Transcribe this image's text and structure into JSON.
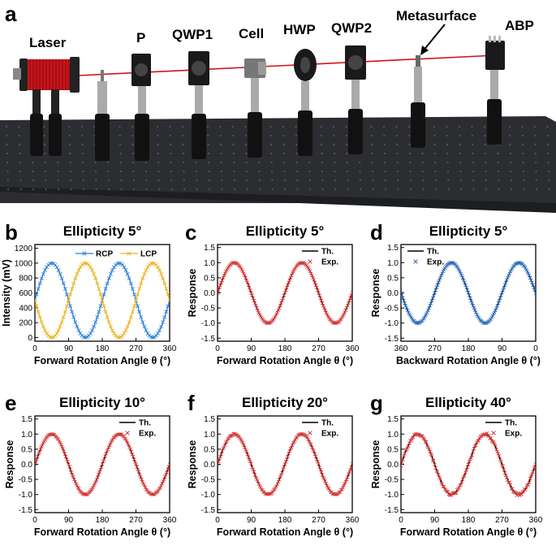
{
  "panel_letters": [
    "a",
    "b",
    "c",
    "d",
    "e",
    "f",
    "g"
  ],
  "setup": {
    "labels": [
      "Laser",
      "P",
      "QWP1",
      "Cell",
      "HWP",
      "QWP2",
      "Metasurface",
      "ABP"
    ],
    "colors": {
      "table": "#2b2d31",
      "table_edge": "#55585e",
      "laser": "#c8141a",
      "beam": "#d0141a",
      "post": "#222222",
      "mount": "#1a1a1a"
    }
  },
  "chart_data": [
    {
      "panel": "b",
      "type": "line",
      "title": "Ellipticity 5°",
      "xlabel": "Forward Rotation Angle θ (°)",
      "ylabel": "Intensity (mV)",
      "xlim": [
        0,
        360
      ],
      "ylim": [
        -50,
        1250
      ],
      "xticks": [
        0,
        90,
        180,
        270,
        360
      ],
      "xtick_labels": [
        "0",
        "90",
        "180",
        "270",
        "360"
      ],
      "yticks": [
        0,
        200,
        400,
        600,
        800,
        1000,
        1200
      ],
      "ytick_labels": [
        "0",
        "200",
        "400",
        "600",
        "800",
        "1000",
        "1200"
      ],
      "legend": "top-right, horizontal",
      "series": [
        {
          "name": "RCP",
          "color": "#2f7fd9",
          "marker": "x",
          "model": "500+500*sin(2θ)"
        },
        {
          "name": "LCP",
          "color": "#e8b420",
          "marker": "x",
          "model": "500-500*sin(2θ)"
        }
      ]
    },
    {
      "panel": "c",
      "type": "line",
      "title": "Ellipticity 5°",
      "xlabel": "Forward Rotation Angle θ (°)",
      "ylabel": "Response",
      "xlim": [
        0,
        360
      ],
      "ylim": [
        -1.6,
        1.6
      ],
      "reversed": false,
      "xticks": [
        0,
        90,
        180,
        270,
        360
      ],
      "xtick_labels": [
        "0",
        "90",
        "180",
        "270",
        "360"
      ],
      "yticks": [
        -1.5,
        -1.0,
        -0.5,
        0.0,
        0.5,
        1.0,
        1.5
      ],
      "ytick_labels": [
        "-1.5",
        "-1.0",
        "-0.5",
        "0.0",
        "0.5",
        "1.0",
        "1.5"
      ],
      "legend": "top-right",
      "series": [
        {
          "name": "Th.",
          "color": "#000000",
          "kind": "line",
          "model": "sin(2θ)"
        },
        {
          "name": "Exp.",
          "color": "#d83a3a",
          "kind": "scatter",
          "marker": "x",
          "noise": 0.01
        }
      ]
    },
    {
      "panel": "d",
      "type": "line",
      "title": "Ellipticity 5°",
      "xlabel": "Backward Rotation Angle θ (°)",
      "ylabel": "Response",
      "xlim": [
        360,
        0
      ],
      "ylim": [
        -1.6,
        1.6
      ],
      "reversed": true,
      "xticks": [
        360,
        270,
        180,
        90,
        0
      ],
      "xtick_labels": [
        "360",
        "270",
        "180",
        "90",
        "0"
      ],
      "yticks": [
        -1.5,
        -1.0,
        -0.5,
        0.0,
        0.5,
        1.0,
        1.5
      ],
      "ytick_labels": [
        "-1.5",
        "-1.0",
        "-0.5",
        "0.0",
        "0.5",
        "1.0",
        "1.5"
      ],
      "legend": "top-left",
      "series": [
        {
          "name": "Th.",
          "color": "#000000",
          "kind": "line",
          "model": "sin(2θ)"
        },
        {
          "name": "Exp.",
          "color": "#2f6fc0",
          "kind": "scatter",
          "marker": "x",
          "noise": 0.01
        }
      ]
    },
    {
      "panel": "e",
      "type": "line",
      "title": "Ellipticity 10°",
      "xlabel": "Forward Rotation Angle θ (°)",
      "ylabel": "Response",
      "xlim": [
        0,
        360
      ],
      "ylim": [
        -1.6,
        1.6
      ],
      "reversed": false,
      "xticks": [
        0,
        90,
        180,
        270,
        360
      ],
      "xtick_labels": [
        "0",
        "90",
        "180",
        "270",
        "360"
      ],
      "yticks": [
        -1.5,
        -1.0,
        -0.5,
        0.0,
        0.5,
        1.0,
        1.5
      ],
      "ytick_labels": [
        "-1.5",
        "-1.0",
        "-0.5",
        "0.0",
        "0.5",
        "1.0",
        "1.5"
      ],
      "legend": "top-right",
      "series": [
        {
          "name": "Th.",
          "color": "#000000",
          "kind": "line",
          "model": "sin(2θ)"
        },
        {
          "name": "Exp.",
          "color": "#d83a3a",
          "kind": "scatter",
          "marker": "x",
          "noise": 0.015
        }
      ]
    },
    {
      "panel": "f",
      "type": "line",
      "title": "Ellipticity 20°",
      "xlabel": "Forward Rotation Angle θ (°)",
      "ylabel": "Response",
      "xlim": [
        0,
        360
      ],
      "ylim": [
        -1.6,
        1.6
      ],
      "reversed": false,
      "xticks": [
        0,
        90,
        180,
        270,
        360
      ],
      "xtick_labels": [
        "0",
        "90",
        "180",
        "270",
        "360"
      ],
      "yticks": [
        -1.5,
        -1.0,
        -0.5,
        0.0,
        0.5,
        1.0,
        1.5
      ],
      "ytick_labels": [
        "-1.5",
        "-1.0",
        "-0.5",
        "0.0",
        "0.5",
        "1.0",
        "1.5"
      ],
      "legend": "top-right",
      "series": [
        {
          "name": "Th.",
          "color": "#000000",
          "kind": "line",
          "model": "sin(2θ)"
        },
        {
          "name": "Exp.",
          "color": "#d83a3a",
          "kind": "scatter",
          "marker": "x",
          "noise": 0.02
        }
      ]
    },
    {
      "panel": "g",
      "type": "line",
      "title": "Ellipticity 40°",
      "xlabel": "Forward Rotation Angle θ (°)",
      "ylabel": "Response",
      "xlim": [
        0,
        360
      ],
      "ylim": [
        -1.6,
        1.6
      ],
      "reversed": false,
      "xticks": [
        0,
        90,
        180,
        270,
        360
      ],
      "xtick_labels": [
        "0",
        "90",
        "180",
        "270",
        "360"
      ],
      "yticks": [
        -1.5,
        -1.0,
        -0.5,
        0.0,
        0.5,
        1.0,
        1.5
      ],
      "ytick_labels": [
        "-1.5",
        "-1.0",
        "-0.5",
        "0.0",
        "0.5",
        "1.0",
        "1.5"
      ],
      "legend": "top-right",
      "series": [
        {
          "name": "Th.",
          "color": "#000000",
          "kind": "line",
          "model": "sin(2θ)"
        },
        {
          "name": "Exp.",
          "color": "#d83a3a",
          "kind": "scatter",
          "marker": "x",
          "noise": 0.05
        }
      ]
    }
  ]
}
